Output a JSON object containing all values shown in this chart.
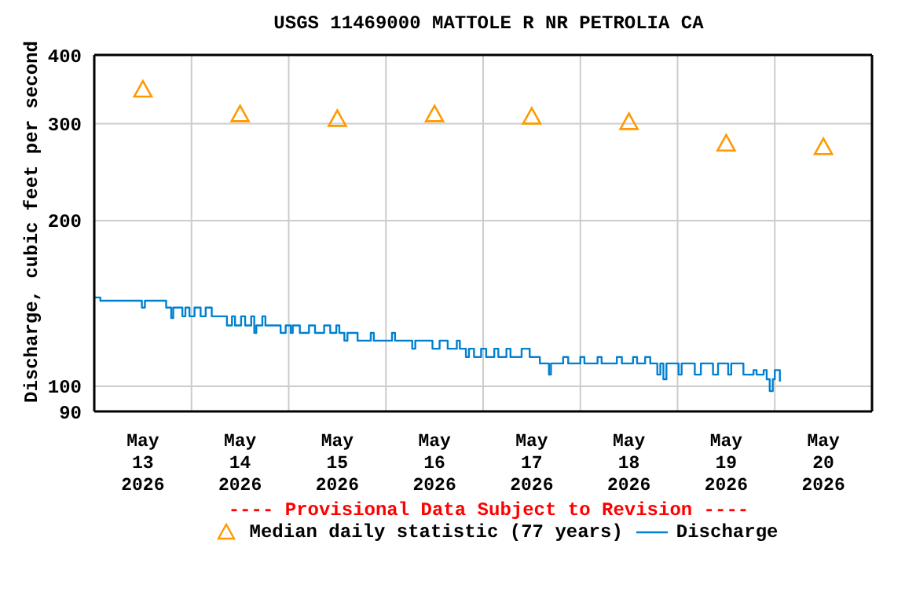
{
  "chart_data": {
    "type": "step",
    "title": "USGS 11469000 MATTOLE R NR PETROLIA CA",
    "ylabel": "Discharge, cubic feet per second",
    "annotations": [
      "---- Provisional Data Subject to Revision ----"
    ],
    "log": "y",
    "grid": true,
    "legend": "bottom",
    "xlim": [
      "2026-05-13T00:00",
      "2026-05-21T00:00"
    ],
    "xticks": [
      {
        "value": "2026-05-13T12:00",
        "label": "May\n13\n2026"
      },
      {
        "value": "2026-05-14T00:00",
        "label": null
      },
      {
        "value": "2026-05-14T12:00",
        "label": "May\n14\n2026"
      },
      {
        "value": "2026-05-15T00:00",
        "label": null
      },
      {
        "value": "2026-05-15T12:00",
        "label": "May\n15\n2026"
      },
      {
        "value": "2026-05-16T00:00",
        "label": null
      },
      {
        "value": "2026-05-16T12:00",
        "label": "May\n16\n2026"
      },
      {
        "value": "2026-05-17T00:00",
        "label": null
      },
      {
        "value": "2026-05-17T12:00",
        "label": "May\n17\n2026"
      },
      {
        "value": "2026-05-18T00:00",
        "label": null
      },
      {
        "value": "2026-05-18T12:00",
        "label": "May\n18\n2026"
      },
      {
        "value": "2026-05-19T00:00",
        "label": null
      },
      {
        "value": "2026-05-19T12:00",
        "label": "May\n19\n2026"
      },
      {
        "value": "2026-05-20T00:00",
        "label": null
      },
      {
        "value": "2026-05-20T12:00",
        "label": "May\n20\n2026"
      }
    ],
    "ylim": [
      90,
      400
    ],
    "yticks": [
      90,
      100,
      200,
      300,
      400
    ],
    "series": [
      {
        "name": "Median daily statistic (77 years)",
        "type": "scatter",
        "marker": "triangle",
        "color": "#ff9900",
        "x": [
          "2026-05-13T12:00",
          "2026-05-14T12:00",
          "2026-05-15T12:00",
          "2026-05-16T12:00",
          "2026-05-17T12:00",
          "2026-05-18T12:00",
          "2026-05-19T12:00",
          "2026-05-20T12:00"
        ],
        "values": [
          346,
          312,
          306,
          312,
          309,
          302,
          276,
          272
        ]
      },
      {
        "name": "Discharge",
        "marker": "none",
        "color": "#0080d0",
        "x": [
          "2026-05-13T00:00",
          "2026-05-13T01:30",
          "2026-05-13T11:45",
          "2026-05-13T12:30",
          "2026-05-13T17:45",
          "2026-05-13T19:00",
          "2026-05-13T19:30",
          "2026-05-13T21:45",
          "2026-05-13T22:30",
          "2026-05-13T23:30",
          "2026-05-14T00:45",
          "2026-05-14T02:15",
          "2026-05-14T03:30",
          "2026-05-14T05:00",
          "2026-05-14T08:45",
          "2026-05-14T10:00",
          "2026-05-14T10:45",
          "2026-05-14T12:15",
          "2026-05-14T13:15",
          "2026-05-14T14:45",
          "2026-05-14T15:30",
          "2026-05-14T16:00",
          "2026-05-14T17:30",
          "2026-05-14T18:15",
          "2026-05-14T22:00",
          "2026-05-14T23:15",
          "2026-05-15T00:30",
          "2026-05-15T01:00",
          "2026-05-15T02:45",
          "2026-05-15T05:00",
          "2026-05-15T06:30",
          "2026-05-15T08:45",
          "2026-05-15T10:15",
          "2026-05-15T11:45",
          "2026-05-15T12:30",
          "2026-05-15T13:45",
          "2026-05-15T14:30",
          "2026-05-15T17:00",
          "2026-05-15T20:15",
          "2026-05-15T21:00",
          "2026-05-16T01:30",
          "2026-05-16T02:15",
          "2026-05-16T06:30",
          "2026-05-16T07:15",
          "2026-05-16T11:30",
          "2026-05-16T13:15",
          "2026-05-16T15:15",
          "2026-05-16T17:30",
          "2026-05-16T18:15",
          "2026-05-16T19:45",
          "2026-05-16T20:30",
          "2026-05-16T21:45",
          "2026-05-16T23:30",
          "2026-05-17T00:45",
          "2026-05-17T02:45",
          "2026-05-17T03:45",
          "2026-05-17T05:45",
          "2026-05-17T06:45",
          "2026-05-17T09:30",
          "2026-05-17T11:30",
          "2026-05-17T14:00",
          "2026-05-17T16:15",
          "2026-05-17T16:45",
          "2026-05-17T19:45",
          "2026-05-17T21:00",
          "2026-05-18T00:00",
          "2026-05-18T01:00",
          "2026-05-18T04:15",
          "2026-05-18T05:15",
          "2026-05-18T09:00",
          "2026-05-18T10:15",
          "2026-05-18T13:00",
          "2026-05-18T14:00",
          "2026-05-18T16:00",
          "2026-05-18T17:15",
          "2026-05-18T19:00",
          "2026-05-18T19:45",
          "2026-05-18T20:30",
          "2026-05-18T21:15",
          "2026-05-19T00:15",
          "2026-05-19T01:00",
          "2026-05-19T04:15",
          "2026-05-19T05:45",
          "2026-05-19T08:45",
          "2026-05-19T10:00",
          "2026-05-19T12:30",
          "2026-05-19T13:15",
          "2026-05-19T16:15",
          "2026-05-19T18:45",
          "2026-05-19T19:30",
          "2026-05-19T21:15",
          "2026-05-19T22:00",
          "2026-05-19T22:45",
          "2026-05-19T23:30",
          "2026-05-20T00:00",
          "2026-05-20T01:15"
        ],
        "values": [
          145,
          143,
          139,
          143,
          139,
          133,
          139,
          134,
          139,
          134,
          139,
          134,
          139,
          134,
          129,
          134,
          129,
          134,
          129,
          134,
          125,
          129,
          134,
          129,
          125,
          129,
          125,
          129,
          125,
          129,
          125,
          129,
          125,
          129,
          125,
          121,
          125,
          121,
          125,
          121,
          125,
          121,
          117,
          121,
          117,
          121,
          117,
          121,
          117,
          113,
          117,
          113,
          117,
          113,
          117,
          113,
          117,
          113,
          117,
          113,
          110,
          105,
          110,
          113,
          110,
          113,
          110,
          113,
          110,
          113,
          110,
          113,
          110,
          113,
          110,
          105,
          110,
          103,
          110,
          105,
          110,
          105,
          110,
          105,
          110,
          105,
          110,
          105,
          107,
          105,
          107,
          103,
          98,
          103,
          107,
          102
        ]
      }
    ]
  }
}
